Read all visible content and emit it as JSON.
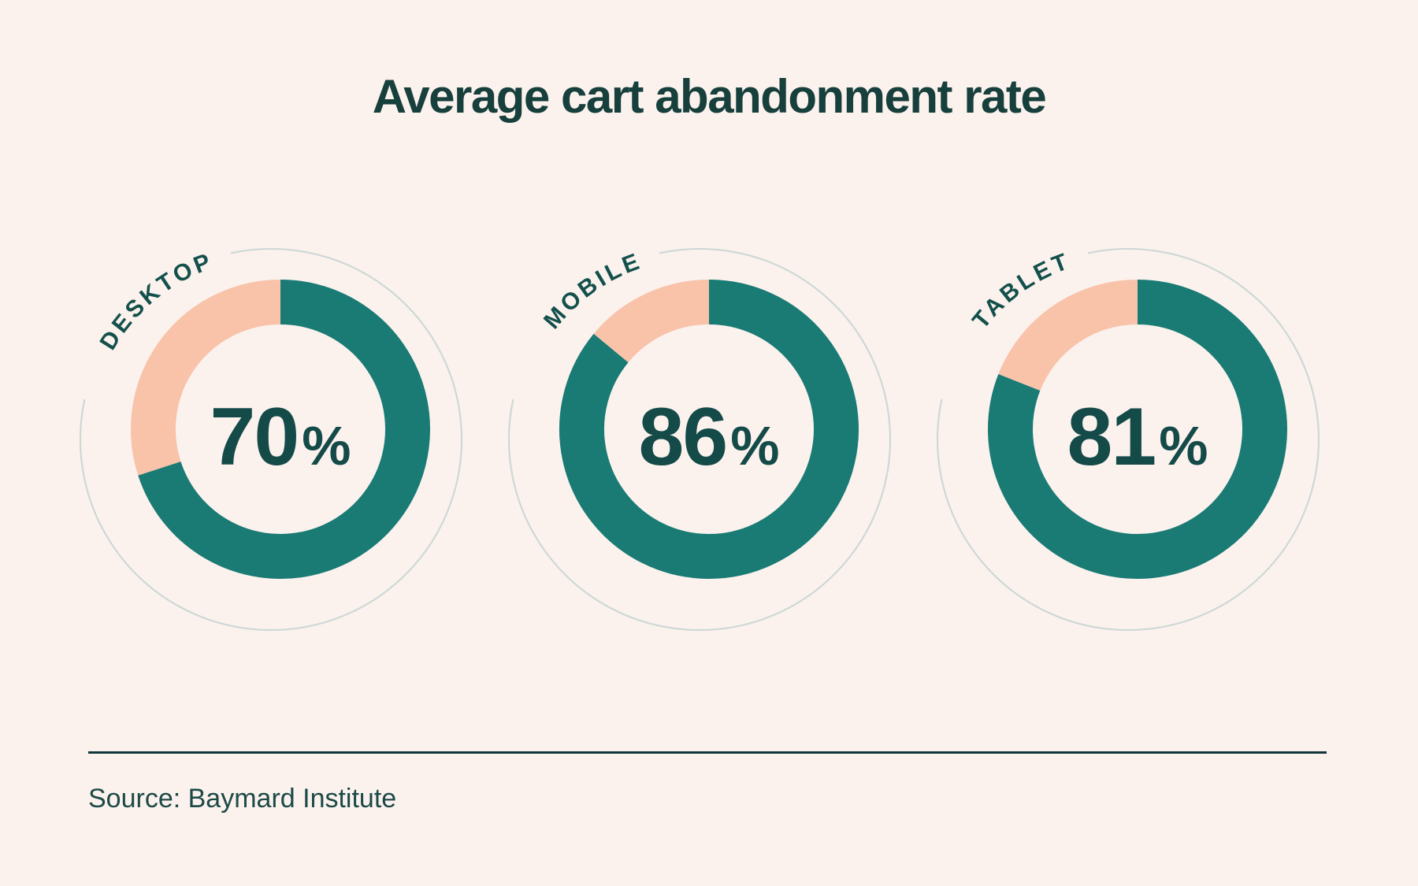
{
  "title": "Average cart abandonment rate",
  "source": "Source: Baymard Institute",
  "colors": {
    "background": "#fbf2ee",
    "title_color": "#173f3c",
    "value_color": "#144a48",
    "label_color": "#14504b",
    "donut_filled": "#1a7a74",
    "donut_remainder": "#f9c3aa",
    "guide_color": "#c6d4d1",
    "divider_color": "#113639",
    "source_color": "#1c4946"
  },
  "chart_data": {
    "type": "pie",
    "subtype": "donut-gauge-row",
    "title": "Average cart abandonment rate",
    "unit": "%",
    "start_angle_deg": 0,
    "direction": "clockwise",
    "legend_position": "none",
    "grid": false,
    "series": [
      {
        "label": "DESKTOP",
        "value": 70,
        "display": "70",
        "unit": "%"
      },
      {
        "label": "MOBILE",
        "value": 86,
        "display": "86",
        "unit": "%"
      },
      {
        "label": "TABLET",
        "value": 81,
        "display": "81",
        "unit": "%"
      }
    ],
    "filled_color": "#1a7a74",
    "remainder_color": "#f9c3aa",
    "source": "Source: Baymard Institute"
  }
}
